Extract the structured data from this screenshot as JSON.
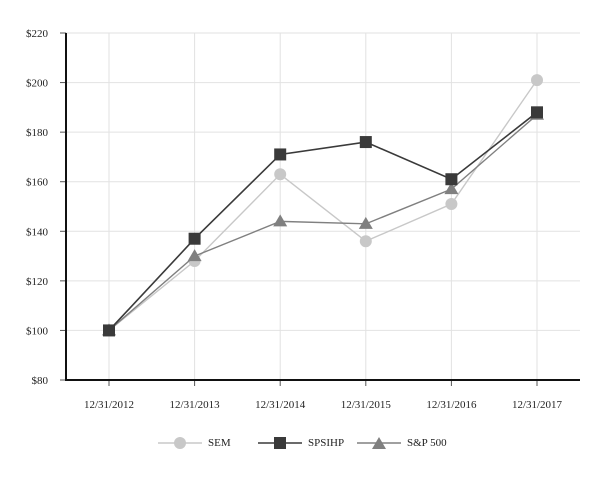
{
  "chart_data": {
    "type": "line",
    "title": "",
    "xlabel": "",
    "ylabel": "",
    "categories": [
      "12/31/2012",
      "12/31/2013",
      "12/31/2014",
      "12/31/2015",
      "12/31/2016",
      "12/31/2017"
    ],
    "yticks": [
      "$80",
      "$100",
      "$120",
      "$140",
      "$160",
      "$180",
      "$200",
      "$220"
    ],
    "ylim": [
      80,
      220
    ],
    "grid": true,
    "legend_position": "bottom",
    "series": [
      {
        "name": "SEM",
        "marker": "circle",
        "color": "#c8c8c8",
        "values": [
          100,
          128,
          163,
          136,
          151,
          201
        ]
      },
      {
        "name": "SPSIHP",
        "marker": "square",
        "color": "#3a3a3a",
        "values": [
          100,
          137,
          171,
          176,
          161,
          188
        ]
      },
      {
        "name": "S&P 500",
        "marker": "triangle",
        "color": "#808080",
        "values": [
          100,
          130,
          144,
          143,
          157,
          187
        ]
      }
    ]
  },
  "legend": {
    "items": [
      {
        "label": "SEM"
      },
      {
        "label": "SPSIHP"
      },
      {
        "label": "S&P 500"
      }
    ]
  }
}
